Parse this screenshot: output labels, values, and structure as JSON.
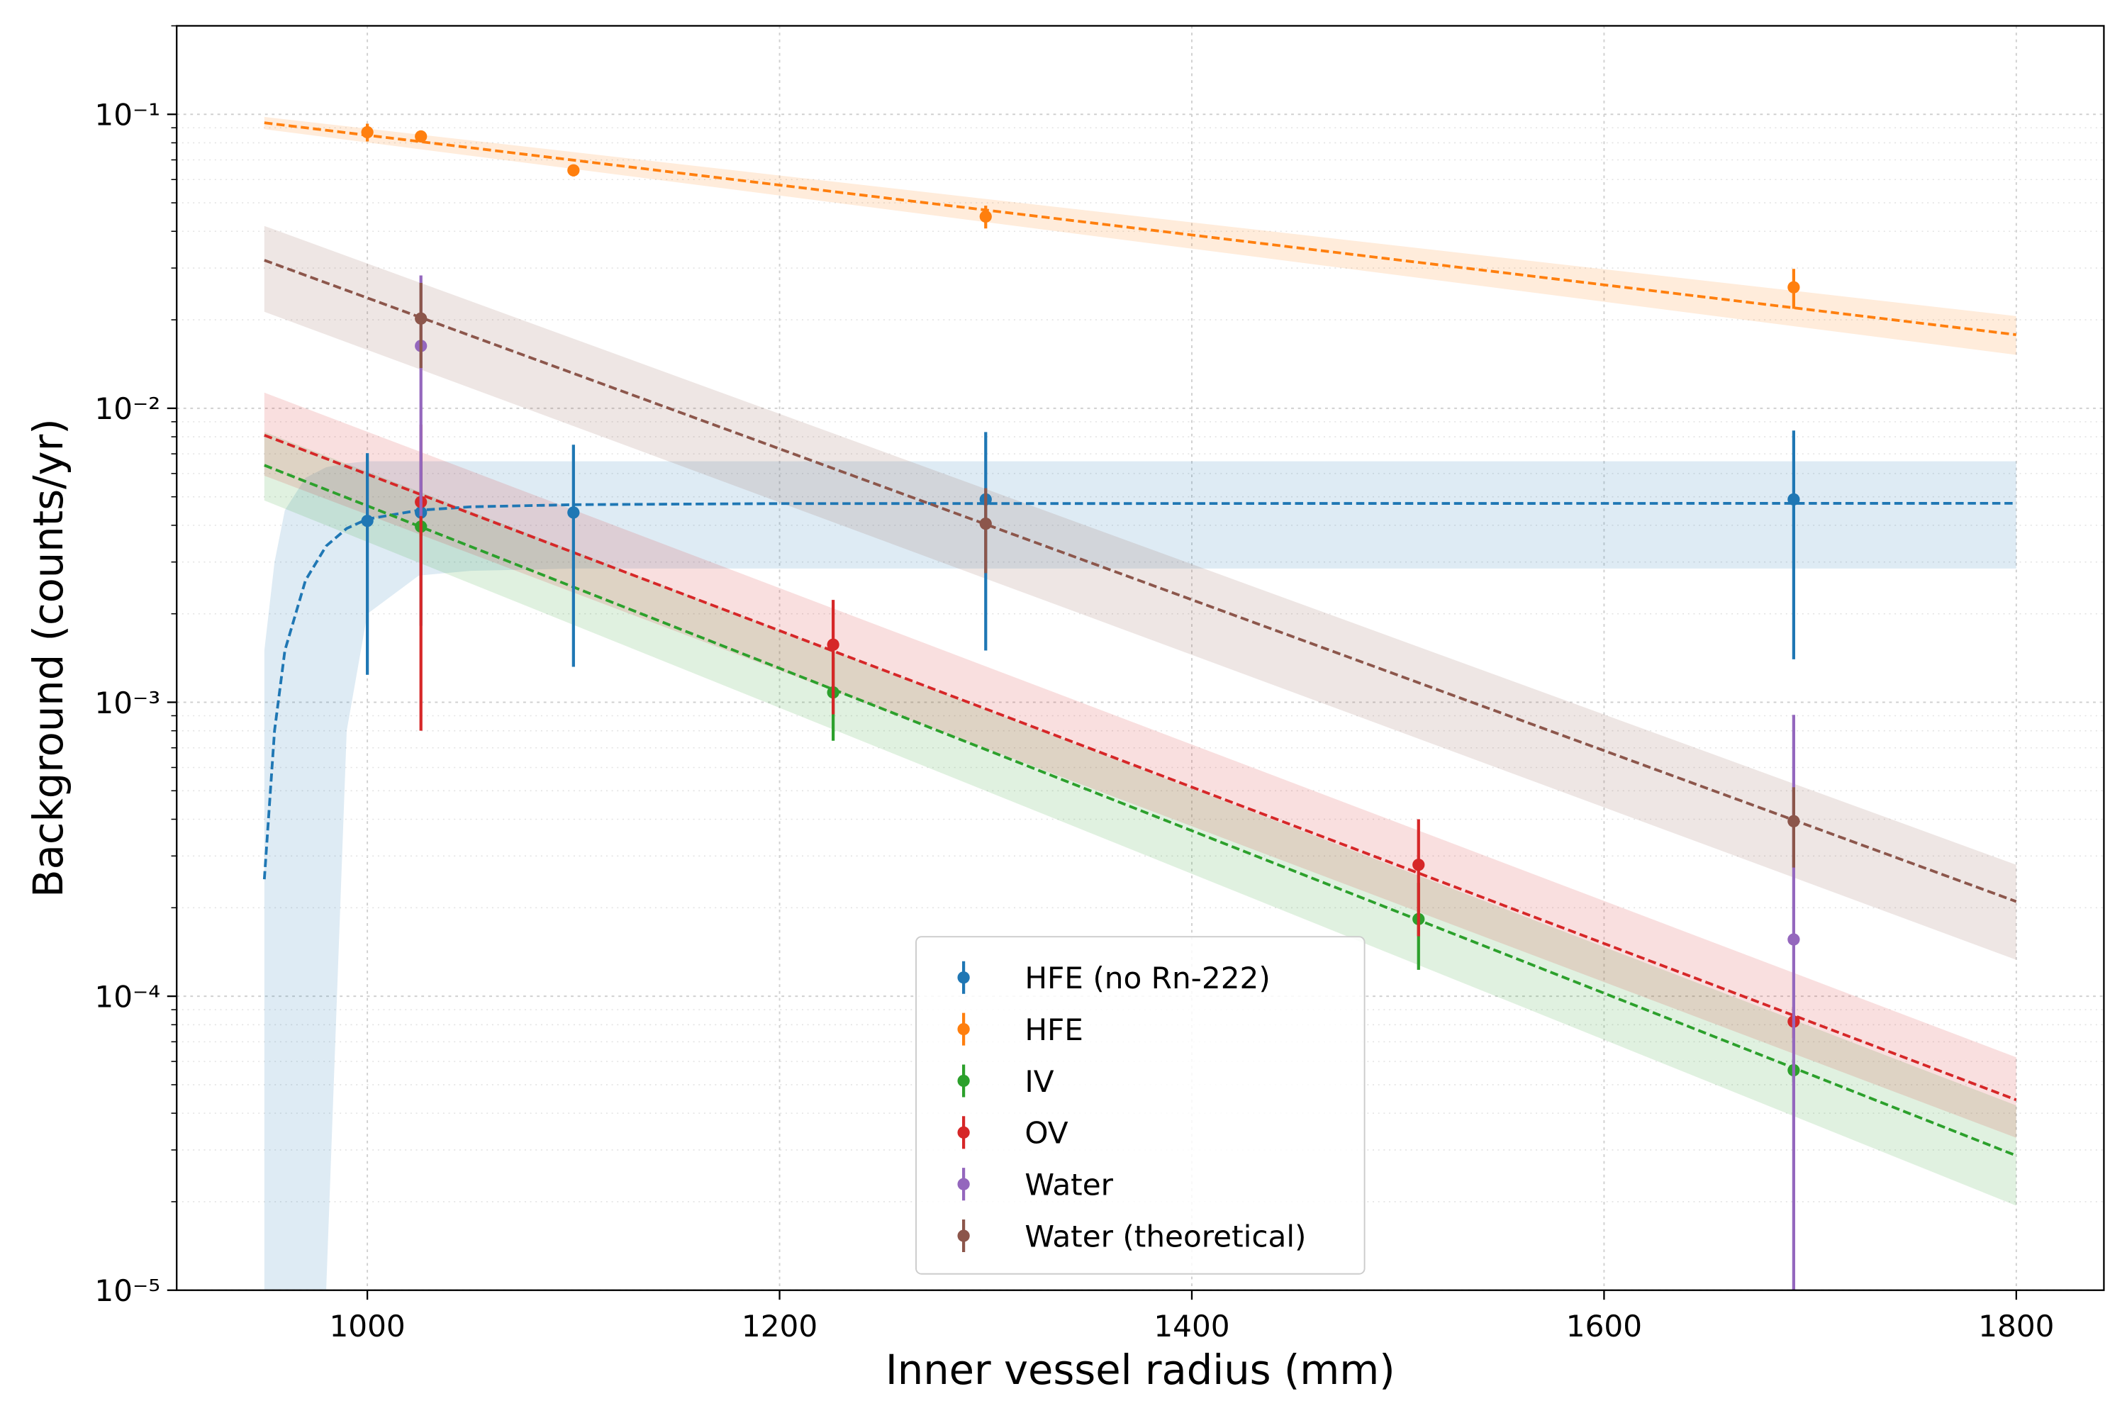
{
  "chart_data": {
    "type": "errorbar",
    "xlabel": "Inner vessel radius (mm)",
    "ylabel": "Background (counts/yr)",
    "xlim": [
      907.5,
      1842.5
    ],
    "xticks": [
      1000,
      1200,
      1400,
      1600,
      1800
    ],
    "ylim": [
      1e-05,
      0.2
    ],
    "yscale": "log",
    "yticks": [
      {
        "value": 1e-05,
        "label": "10⁻⁵"
      },
      {
        "value": 0.0001,
        "label": "10⁻⁴"
      },
      {
        "value": 0.001,
        "label": "10⁻³"
      },
      {
        "value": 0.01,
        "label": "10⁻²"
      },
      {
        "value": 0.1,
        "label": "10⁻¹"
      }
    ],
    "yminorticks": [
      2e-05,
      3e-05,
      4e-05,
      5e-05,
      6e-05,
      7e-05,
      8e-05,
      9e-05,
      0.0002,
      0.0003,
      0.0004,
      0.0005,
      0.0006,
      0.0007,
      0.0008,
      0.0009,
      0.002,
      0.003,
      0.004,
      0.005,
      0.006,
      0.007,
      0.008,
      0.009,
      0.02,
      0.03,
      0.04,
      0.05,
      0.06,
      0.07,
      0.08,
      0.09,
      0.2
    ],
    "grid": true,
    "legend": "lower center",
    "series": [
      {
        "name": "HFE (no Rn-222)",
        "color": "#1f77b4",
        "x": [
          1000,
          1026,
          1100,
          1300,
          1692
        ],
        "values": [
          0.00414,
          0.00442,
          0.00442,
          0.0049,
          0.0049
        ],
        "errors": [
          0.0029,
          0.0026,
          0.0031,
          0.0034,
          0.0035
        ],
        "fit_x": [
          950,
          955,
          960,
          970,
          980,
          990,
          1000,
          1025,
          1050,
          1100,
          1200,
          1800
        ],
        "fit_values": [
          0.00025,
          0.0008,
          0.0015,
          0.0026,
          0.0034,
          0.0039,
          0.0042,
          0.0045,
          0.00462,
          0.0047,
          0.00474,
          0.00475
        ],
        "band_lower": [
          null,
          null,
          null,
          null,
          null,
          0.0008,
          0.002,
          0.0027,
          0.0028,
          0.00285,
          0.00285,
          0.00285
        ],
        "band_upper": [
          0.0015,
          0.003,
          0.0045,
          0.0058,
          0.0063,
          0.0065,
          0.0066,
          0.0066,
          0.0066,
          0.0066,
          0.0066,
          0.0066
        ]
      },
      {
        "name": "HFE",
        "color": "#ff7f0e",
        "x": [
          1000,
          1026,
          1100,
          1300,
          1692
        ],
        "values": [
          0.0869,
          0.0841,
          0.0645,
          0.0449,
          0.0258
        ],
        "errors": [
          0.006,
          0.003,
          0.003,
          0.004,
          0.004
        ],
        "fit_x": [
          950,
          1800
        ],
        "fit_values": [
          0.0936,
          0.0178
        ],
        "band_lower": [
          0.089,
          0.0152
        ],
        "band_upper": [
          0.098,
          0.0206
        ]
      },
      {
        "name": "IV",
        "color": "#2ca02c",
        "x": [
          1026,
          1226,
          1510,
          1692
        ],
        "values": [
          0.00396,
          0.00108,
          0.000183,
          5.6e-05
        ],
        "errors": [
          0.0003,
          0.00034,
          6e-05,
          5e-06
        ],
        "fit_x": [
          950,
          1800
        ],
        "fit_values": [
          0.0064,
          2.87e-05
        ],
        "band_lower": [
          0.00486,
          1.94e-05
        ],
        "band_upper": [
          0.0083,
          4.25e-05
        ]
      },
      {
        "name": "OV",
        "color": "#d62728",
        "x": [
          1026,
          1226,
          1510,
          1692
        ],
        "values": [
          0.0048,
          0.00157,
          0.00028,
          8.2e-05
        ],
        "errors": [
          0.004,
          0.00066,
          0.00012,
          1e-05
        ],
        "fit_x": [
          950,
          1800
        ],
        "fit_values": [
          0.0081,
          4.44e-05
        ],
        "band_lower": [
          0.0059,
          3.3e-05
        ],
        "band_upper": [
          0.0113,
          6.2e-05
        ]
      },
      {
        "name": "Water",
        "color": "#9467bd",
        "x": [
          1026,
          1692
        ],
        "values": [
          0.0163,
          0.000156
        ],
        "errors": [
          0.012,
          0.00075
        ]
      },
      {
        "name": "Water (theoretical)",
        "color": "#8c564b",
        "x": [
          1026,
          1300,
          1692
        ],
        "values": [
          0.0202,
          0.00405,
          0.000394
        ],
        "errors": [
          0.0065,
          0.0013,
          0.00012
        ],
        "fit_x": [
          950,
          1800
        ],
        "fit_values": [
          0.0319,
          0.00021
        ],
        "band_lower": [
          0.0213,
          0.000133
        ],
        "band_upper": [
          0.0417,
          0.00028
        ]
      }
    ]
  }
}
